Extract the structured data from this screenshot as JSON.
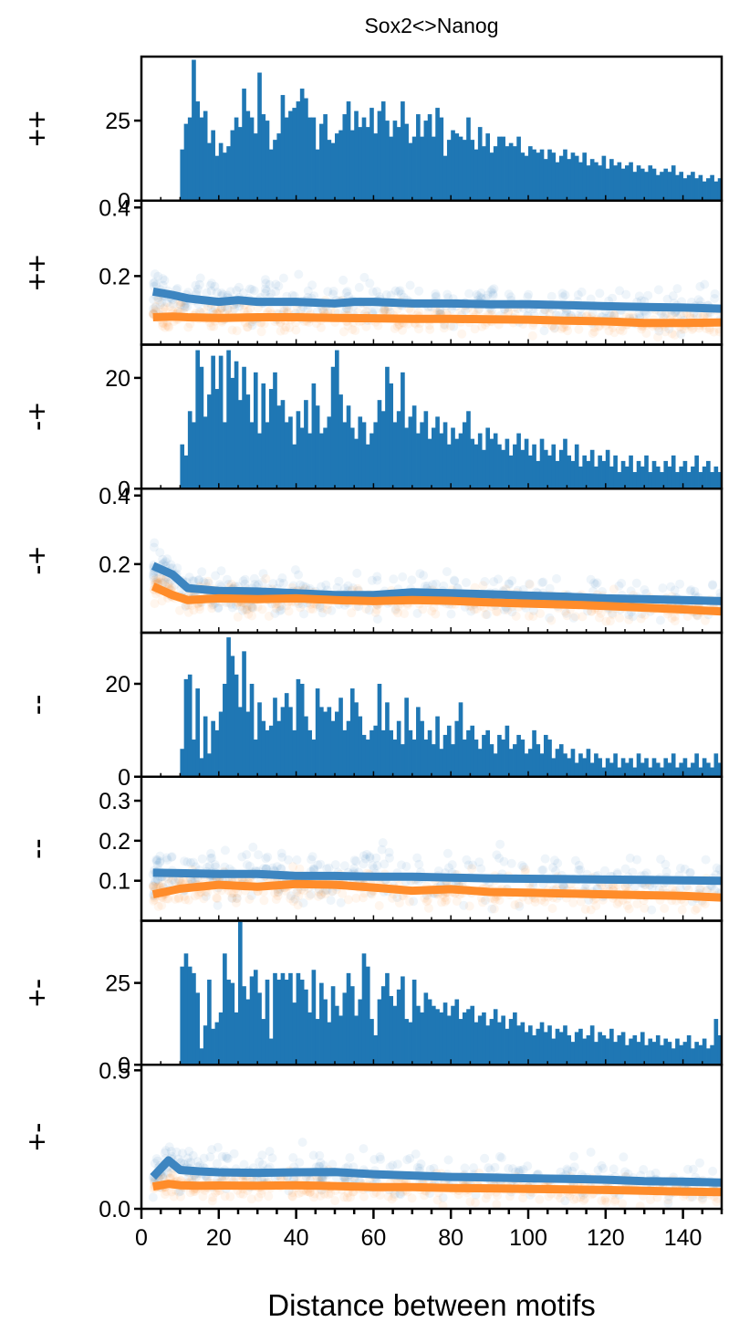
{
  "figure": {
    "title": "Sox2<>Nanog",
    "xlabel": "Distance between motifs",
    "xlim": [
      0,
      150
    ],
    "xticks": [
      "0",
      "20",
      "40",
      "60",
      "80",
      "100",
      "120",
      "140"
    ],
    "colors": {
      "bars": "#1f77b4",
      "blue_line": "#3d85c0",
      "orange_line": "#ff8c2a",
      "blue_points": "#1f77b4",
      "orange_points": "#ff7f0e"
    }
  },
  "chart_data": [
    {
      "type": "bar",
      "row_label": "++",
      "ylim": [
        0,
        45
      ],
      "yticks": [
        "0",
        "25"
      ],
      "x_start": 10,
      "x_end": 150,
      "values": [
        16,
        24,
        26,
        44,
        31,
        26,
        28,
        18,
        22,
        14,
        18,
        15,
        17,
        22,
        26,
        23,
        35,
        28,
        26,
        21,
        40,
        27,
        25,
        16,
        19,
        21,
        33,
        26,
        28,
        29,
        31,
        35,
        32,
        26,
        26,
        16,
        24,
        27,
        19,
        18,
        21,
        22,
        27,
        31,
        22,
        28,
        23,
        26,
        23,
        29,
        21,
        28,
        31,
        25,
        20,
        25,
        23,
        31,
        24,
        18,
        20,
        27,
        20,
        25,
        27,
        20,
        29,
        26,
        14,
        19,
        22,
        21,
        20,
        19,
        26,
        19,
        16,
        23,
        17,
        21,
        15,
        17,
        20,
        20,
        17,
        18,
        17,
        20,
        15,
        14,
        17,
        16,
        15,
        16,
        13,
        16,
        15,
        12,
        14,
        16,
        13,
        15,
        14,
        12,
        15,
        11,
        13,
        12,
        11,
        14,
        10,
        13,
        11,
        12,
        10,
        11,
        12,
        9,
        11,
        10,
        9,
        11,
        10,
        8,
        9,
        10,
        9,
        11,
        8,
        9,
        7,
        8,
        9,
        7,
        8,
        6,
        7,
        8,
        6,
        7
      ]
    },
    {
      "type": "scatter",
      "row_label": "++",
      "ylim": [
        0,
        0.42
      ],
      "yticks": [
        "0.2",
        "0.4"
      ],
      "series": [
        {
          "color": "#1f77b4",
          "x": [
            3,
            8,
            12,
            20,
            25,
            30,
            40,
            50,
            55,
            60,
            70,
            80,
            90,
            100,
            110,
            120,
            130,
            140,
            150
          ],
          "y": [
            0.155,
            0.145,
            0.135,
            0.125,
            0.13,
            0.125,
            0.125,
            0.12,
            0.125,
            0.125,
            0.12,
            0.12,
            0.118,
            0.118,
            0.115,
            0.112,
            0.11,
            0.108,
            0.105
          ]
        },
        {
          "color": "#ff7f0e",
          "x": [
            3,
            8,
            12,
            20,
            30,
            40,
            50,
            60,
            70,
            80,
            90,
            100,
            110,
            120,
            130,
            140,
            150
          ],
          "y": [
            0.08,
            0.082,
            0.08,
            0.078,
            0.08,
            0.08,
            0.078,
            0.077,
            0.075,
            0.075,
            0.074,
            0.073,
            0.07,
            0.068,
            0.063,
            0.063,
            0.065
          ]
        }
      ]
    },
    {
      "type": "bar",
      "row_label": "-+",
      "ylim": [
        0,
        26
      ],
      "yticks": [
        "0",
        "20"
      ],
      "x_start": 10,
      "x_end": 150,
      "values": [
        8,
        6,
        14,
        12,
        25,
        22,
        13,
        17,
        24,
        18,
        24,
        12,
        25,
        20,
        23,
        16,
        22,
        17,
        12,
        21,
        10,
        19,
        12,
        18,
        21,
        15,
        16,
        12,
        13,
        8,
        14,
        11,
        16,
        10,
        19,
        15,
        10,
        11,
        13,
        22,
        25,
        17,
        12,
        15,
        11,
        9,
        13,
        12,
        8,
        10,
        12,
        16,
        14,
        22,
        19,
        12,
        14,
        21,
        11,
        13,
        15,
        10,
        12,
        14,
        9,
        11,
        13,
        10,
        12,
        8,
        11,
        9,
        10,
        12,
        14,
        9,
        8,
        10,
        7,
        11,
        9,
        10,
        8,
        7,
        9,
        6,
        8,
        10,
        7,
        9,
        6,
        8,
        5,
        9,
        7,
        6,
        8,
        5,
        7,
        9,
        6,
        5,
        8,
        4,
        6,
        5,
        7,
        4,
        6,
        5,
        7,
        4,
        6,
        3,
        5,
        4,
        6,
        3,
        5,
        4,
        6,
        3,
        5,
        4,
        3,
        5,
        4,
        6,
        3,
        4,
        5,
        3,
        4,
        6,
        3,
        4,
        5,
        3,
        4,
        3
      ]
    },
    {
      "type": "scatter",
      "row_label": "-+",
      "ylim": [
        0,
        0.42
      ],
      "yticks": [
        "0.2",
        "0.4"
      ],
      "series": [
        {
          "color": "#1f77b4",
          "x": [
            3,
            8,
            12,
            20,
            30,
            40,
            50,
            60,
            70,
            80,
            90,
            100,
            110,
            120,
            130,
            140,
            150
          ],
          "y": [
            0.195,
            0.17,
            0.13,
            0.122,
            0.12,
            0.115,
            0.11,
            0.11,
            0.118,
            0.115,
            0.112,
            0.108,
            0.105,
            0.1,
            0.098,
            0.095,
            0.092
          ]
        },
        {
          "color": "#ff7f0e",
          "x": [
            3,
            8,
            12,
            20,
            30,
            40,
            50,
            60,
            70,
            80,
            90,
            100,
            110,
            120,
            130,
            140,
            150
          ],
          "y": [
            0.135,
            0.11,
            0.095,
            0.1,
            0.098,
            0.1,
            0.095,
            0.092,
            0.095,
            0.093,
            0.088,
            0.085,
            0.082,
            0.078,
            0.073,
            0.068,
            0.062
          ]
        }
      ]
    },
    {
      "type": "bar",
      "row_label": "--",
      "ylim": [
        0,
        31
      ],
      "yticks": [
        "0",
        "20"
      ],
      "x_start": 10,
      "x_end": 150,
      "values": [
        6,
        21,
        22,
        8,
        19,
        4,
        13,
        5,
        12,
        10,
        14,
        20,
        30,
        26,
        22,
        15,
        27,
        14,
        20,
        8,
        16,
        12,
        10,
        11,
        17,
        12,
        15,
        18,
        15,
        10,
        21,
        20,
        13,
        10,
        8,
        19,
        15,
        14,
        15,
        12,
        14,
        17,
        10,
        12,
        19,
        16,
        13,
        9,
        8,
        10,
        11,
        20,
        10,
        16,
        10,
        8,
        12,
        7,
        17,
        10,
        8,
        15,
        12,
        8,
        10,
        7,
        13,
        6,
        9,
        11,
        7,
        12,
        16,
        8,
        10,
        11,
        8,
        6,
        9,
        10,
        7,
        5,
        9,
        8,
        11,
        6,
        7,
        9,
        8,
        5,
        6,
        10,
        7,
        5,
        9,
        8,
        4,
        6,
        7,
        5,
        4,
        6,
        3,
        5,
        4,
        6,
        3,
        5,
        4,
        2,
        4,
        3,
        5,
        2,
        4,
        3,
        4,
        2,
        5,
        3,
        4,
        2,
        4,
        3,
        2,
        4,
        3,
        5,
        2,
        3,
        4,
        2,
        3,
        5,
        2,
        4,
        3,
        2,
        5,
        3
      ]
    },
    {
      "type": "scatter",
      "row_label": "--",
      "ylim": [
        0,
        0.36
      ],
      "yticks": [
        "0.1",
        "0.2",
        "0.3"
      ],
      "series": [
        {
          "color": "#1f77b4",
          "x": [
            3,
            10,
            20,
            30,
            40,
            50,
            60,
            70,
            80,
            90,
            100,
            110,
            120,
            130,
            140,
            150
          ],
          "y": [
            0.12,
            0.119,
            0.117,
            0.117,
            0.112,
            0.112,
            0.11,
            0.11,
            0.108,
            0.106,
            0.105,
            0.104,
            0.103,
            0.102,
            0.101,
            0.1
          ]
        },
        {
          "color": "#ff7f0e",
          "x": [
            3,
            10,
            20,
            30,
            40,
            50,
            60,
            70,
            80,
            90,
            100,
            110,
            120,
            130,
            140,
            150
          ],
          "y": [
            0.066,
            0.08,
            0.09,
            0.085,
            0.092,
            0.09,
            0.083,
            0.075,
            0.079,
            0.072,
            0.07,
            0.068,
            0.066,
            0.064,
            0.062,
            0.058
          ]
        }
      ]
    },
    {
      "type": "bar",
      "row_label": "+-",
      "ylim": [
        0,
        44
      ],
      "yticks": [
        "0",
        "25"
      ],
      "x_start": 10,
      "x_end": 150,
      "values": [
        30,
        34,
        30,
        28,
        22,
        5,
        12,
        26,
        11,
        13,
        16,
        34,
        26,
        25,
        16,
        44,
        24,
        20,
        27,
        29,
        22,
        14,
        26,
        8,
        28,
        26,
        28,
        26,
        28,
        19,
        28,
        26,
        23,
        16,
        29,
        14,
        25,
        20,
        13,
        24,
        18,
        15,
        22,
        28,
        24,
        15,
        20,
        34,
        30,
        14,
        9,
        20,
        24,
        28,
        21,
        18,
        23,
        27,
        14,
        13,
        26,
        18,
        16,
        22,
        20,
        18,
        17,
        16,
        19,
        15,
        18,
        20,
        14,
        16,
        17,
        18,
        13,
        15,
        16,
        12,
        14,
        17,
        13,
        15,
        11,
        14,
        16,
        12,
        13,
        10,
        12,
        9,
        11,
        13,
        10,
        12,
        8,
        11,
        10,
        12,
        9,
        7,
        10,
        11,
        8,
        9,
        12,
        7,
        10,
        9,
        8,
        11,
        7,
        9,
        10,
        6,
        8,
        9,
        7,
        10,
        6,
        8,
        7,
        9,
        6,
        8,
        7,
        5,
        8,
        6,
        7,
        9,
        5,
        7,
        6,
        8,
        5,
        6,
        14,
        9
      ]
    },
    {
      "type": "scatter",
      "row_label": "+-",
      "ylim": [
        0,
        0.52
      ],
      "yticks": [
        "0.0",
        "0.5"
      ],
      "series": [
        {
          "color": "#1f77b4",
          "x": [
            3,
            7,
            10,
            15,
            20,
            30,
            40,
            50,
            60,
            70,
            80,
            90,
            100,
            110,
            120,
            130,
            140,
            150
          ],
          "y": [
            0.115,
            0.175,
            0.14,
            0.135,
            0.132,
            0.13,
            0.132,
            0.133,
            0.125,
            0.12,
            0.115,
            0.113,
            0.11,
            0.108,
            0.105,
            0.1,
            0.098,
            0.095
          ]
        },
        {
          "color": "#ff7f0e",
          "x": [
            3,
            7,
            10,
            15,
            20,
            30,
            40,
            50,
            60,
            70,
            80,
            90,
            100,
            110,
            120,
            130,
            140,
            150
          ],
          "y": [
            0.08,
            0.09,
            0.085,
            0.083,
            0.084,
            0.083,
            0.085,
            0.082,
            0.078,
            0.078,
            0.075,
            0.074,
            0.072,
            0.07,
            0.068,
            0.065,
            0.062,
            0.06
          ]
        }
      ]
    }
  ]
}
